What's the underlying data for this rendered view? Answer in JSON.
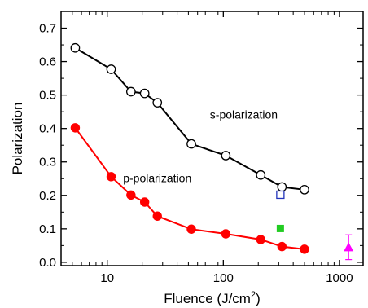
{
  "chart_data": {
    "type": "scatter",
    "xlabel": "Fluence (J/cm",
    "xlabel_superscript": "2",
    "xlabel_close": ")",
    "ylabel": "Polarization",
    "xscale": "log",
    "xlim": [
      4,
      1600
    ],
    "ylim": [
      -0.01,
      0.75
    ],
    "x_ticks": [
      10,
      100,
      1000
    ],
    "x_tick_labels": [
      "10",
      "100",
      "1000"
    ],
    "y_ticks": [
      0.0,
      0.1,
      0.2,
      0.3,
      0.4,
      0.5,
      0.6,
      0.7
    ],
    "y_tick_labels": [
      "0.0",
      "0.1",
      "0.2",
      "0.3",
      "0.4",
      "0.5",
      "0.6",
      "0.7"
    ],
    "grid": false,
    "series": [
      {
        "name": "s-polarization",
        "color": "#000000",
        "marker": "open-circle",
        "line": true,
        "x": [
          5.3,
          10.8,
          16,
          21,
          27,
          53,
          105,
          210,
          320,
          500
        ],
        "y": [
          0.641,
          0.577,
          0.51,
          0.505,
          0.477,
          0.354,
          0.319,
          0.261,
          0.225,
          0.217
        ]
      },
      {
        "name": "p-polarization",
        "color": "#ff0000",
        "marker": "filled-circle",
        "line": true,
        "x": [
          5.3,
          10.8,
          16,
          21,
          27,
          53,
          105,
          210,
          320,
          500
        ],
        "y": [
          0.402,
          0.256,
          0.201,
          0.18,
          0.138,
          0.099,
          0.085,
          0.068,
          0.047,
          0.039
        ]
      },
      {
        "color": "#2233bb",
        "marker": "open-square",
        "line": false,
        "x": [
          310
        ],
        "y": [
          0.202
        ]
      },
      {
        "color": "#22cc22",
        "marker": "filled-square",
        "line": false,
        "x": [
          310
        ],
        "y": [
          0.101
        ]
      },
      {
        "color": "#ff00ff",
        "marker": "filled-triangle",
        "line": false,
        "x": [
          1200
        ],
        "y": [
          0.045
        ],
        "yerr": 0.037
      }
    ],
    "annotations": [
      {
        "text": "s-polarization",
        "x": 150,
        "y": 0.43
      },
      {
        "text": "p-polarization",
        "x": 27,
        "y": 0.24
      }
    ]
  }
}
